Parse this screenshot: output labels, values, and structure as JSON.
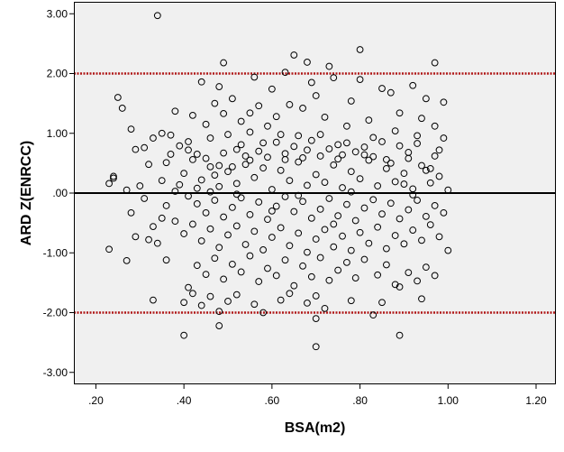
{
  "chart_data": {
    "type": "scatter",
    "title": "",
    "xlabel": "BSA(m2)",
    "ylabel": "ARD Z(ENRCC)",
    "xlim": [
      0.15,
      1.245
    ],
    "ylim": [
      -3.2,
      3.2
    ],
    "xticks": [
      0.2,
      0.4,
      0.6,
      0.8,
      1.0,
      1.2
    ],
    "xtick_labels": [
      ".20",
      ".40",
      ".60",
      ".80",
      "1.00",
      "1.20"
    ],
    "yticks": [
      3,
      2,
      1,
      0,
      -1,
      -2,
      -3
    ],
    "ytick_labels": [
      "3.00",
      "2.00",
      "1.00",
      ".00",
      "-1.00",
      "-2.00",
      "-3.00"
    ],
    "grid": false,
    "legend": "none",
    "plot_background": "#f0f0f0",
    "marker": "open-circle",
    "reference_lines": [
      {
        "y": 0,
        "style": "solid",
        "color": "#000000"
      },
      {
        "y": 2,
        "style": "dotted",
        "color": "#b01818"
      },
      {
        "y": -2,
        "style": "dotted",
        "color": "#b01818"
      }
    ],
    "points": [
      [
        0.34,
        2.97
      ],
      [
        0.49,
        2.18
      ],
      [
        0.63,
        2.02
      ],
      [
        0.65,
        2.31
      ],
      [
        0.68,
        2.19
      ],
      [
        0.73,
        2.12
      ],
      [
        0.8,
        2.4
      ],
      [
        0.97,
        2.18
      ],
      [
        0.25,
        1.6
      ],
      [
        0.26,
        1.42
      ],
      [
        0.28,
        1.07
      ],
      [
        0.29,
        0.73
      ],
      [
        0.31,
        0.76
      ],
      [
        0.33,
        0.92
      ],
      [
        0.35,
        1.0
      ],
      [
        0.36,
        0.51
      ],
      [
        0.37,
        0.97
      ],
      [
        0.38,
        1.37
      ],
      [
        0.39,
        0.79
      ],
      [
        0.41,
        0.86
      ],
      [
        0.42,
        1.3
      ],
      [
        0.43,
        0.65
      ],
      [
        0.45,
        1.15
      ],
      [
        0.46,
        0.92
      ],
      [
        0.47,
        1.5
      ],
      [
        0.48,
        1.78
      ],
      [
        0.49,
        1.33
      ],
      [
        0.5,
        0.98
      ],
      [
        0.51,
        1.58
      ],
      [
        0.52,
        0.73
      ],
      [
        0.53,
        1.2
      ],
      [
        0.54,
        0.62
      ],
      [
        0.55,
        1.02
      ],
      [
        0.57,
        1.46
      ],
      [
        0.58,
        0.84
      ],
      [
        0.59,
        1.12
      ],
      [
        0.6,
        1.74
      ],
      [
        0.61,
        1.28
      ],
      [
        0.63,
        0.56
      ],
      [
        0.64,
        1.48
      ],
      [
        0.66,
        0.96
      ],
      [
        0.67,
        1.42
      ],
      [
        0.68,
        0.72
      ],
      [
        0.7,
        1.63
      ],
      [
        0.71,
        0.98
      ],
      [
        0.72,
        1.27
      ],
      [
        0.74,
        1.93
      ],
      [
        0.75,
        0.81
      ],
      [
        0.77,
        1.12
      ],
      [
        0.78,
        1.54
      ],
      [
        0.8,
        1.9
      ],
      [
        0.81,
        0.64
      ],
      [
        0.82,
        1.22
      ],
      [
        0.83,
        0.93
      ],
      [
        0.85,
        1.75
      ],
      [
        0.86,
        0.56
      ],
      [
        0.88,
        1.04
      ],
      [
        0.89,
        1.34
      ],
      [
        0.91,
        0.68
      ],
      [
        0.92,
        1.8
      ],
      [
        0.93,
        0.96
      ],
      [
        0.95,
        1.58
      ],
      [
        0.96,
        0.41
      ],
      [
        0.97,
        1.12
      ],
      [
        0.98,
        0.72
      ],
      [
        0.99,
        1.52
      ],
      [
        0.99,
        0.92
      ],
      [
        0.44,
        1.86
      ],
      [
        0.56,
        1.94
      ],
      [
        0.69,
        1.85
      ],
      [
        0.87,
        1.68
      ],
      [
        0.94,
        1.25
      ],
      [
        0.4,
        0.33
      ],
      [
        0.42,
        0.56
      ],
      [
        0.44,
        0.22
      ],
      [
        0.46,
        0.44
      ],
      [
        0.48,
        0.11
      ],
      [
        0.5,
        0.36
      ],
      [
        0.52,
        0.16
      ],
      [
        0.54,
        0.48
      ],
      [
        0.56,
        0.26
      ],
      [
        0.58,
        0.42
      ],
      [
        0.6,
        0.06
      ],
      [
        0.62,
        0.38
      ],
      [
        0.64,
        0.21
      ],
      [
        0.66,
        0.52
      ],
      [
        0.68,
        0.13
      ],
      [
        0.7,
        0.31
      ],
      [
        0.72,
        0.18
      ],
      [
        0.74,
        0.47
      ],
      [
        0.76,
        0.09
      ],
      [
        0.78,
        0.36
      ],
      [
        0.8,
        0.24
      ],
      [
        0.82,
        0.55
      ],
      [
        0.84,
        0.12
      ],
      [
        0.86,
        0.41
      ],
      [
        0.88,
        0.19
      ],
      [
        0.9,
        0.33
      ],
      [
        0.92,
        0.07
      ],
      [
        0.94,
        0.46
      ],
      [
        0.96,
        0.17
      ],
      [
        0.98,
        0.28
      ],
      [
        1.0,
        0.05
      ],
      [
        0.23,
        0.16
      ],
      [
        0.24,
        0.25
      ],
      [
        0.27,
        0.05
      ],
      [
        0.3,
        0.12
      ],
      [
        0.32,
        0.48
      ],
      [
        0.35,
        0.21
      ],
      [
        0.37,
        0.65
      ],
      [
        0.39,
        0.14
      ],
      [
        0.41,
        0.72
      ],
      [
        0.43,
        0.08
      ],
      [
        0.45,
        0.58
      ],
      [
        0.47,
        0.3
      ],
      [
        0.49,
        0.67
      ],
      [
        0.51,
        0.44
      ],
      [
        0.53,
        0.81
      ],
      [
        0.55,
        0.55
      ],
      [
        0.57,
        0.7
      ],
      [
        0.59,
        0.6
      ],
      [
        0.61,
        0.85
      ],
      [
        0.63,
        0.66
      ],
      [
        0.65,
        0.78
      ],
      [
        0.67,
        0.59
      ],
      [
        0.69,
        0.88
      ],
      [
        0.71,
        0.62
      ],
      [
        0.73,
        0.74
      ],
      [
        0.75,
        0.57
      ],
      [
        0.77,
        0.84
      ],
      [
        0.79,
        0.69
      ],
      [
        0.81,
        0.77
      ],
      [
        0.83,
        0.61
      ],
      [
        0.85,
        0.86
      ],
      [
        0.87,
        0.5
      ],
      [
        0.89,
        0.79
      ],
      [
        0.91,
        0.58
      ],
      [
        0.93,
        0.83
      ],
      [
        0.95,
        0.38
      ],
      [
        0.97,
        0.62
      ],
      [
        0.41,
        -0.05
      ],
      [
        0.43,
        -0.18
      ],
      [
        0.45,
        -0.33
      ],
      [
        0.47,
        -0.12
      ],
      [
        0.49,
        -0.4
      ],
      [
        0.51,
        -0.24
      ],
      [
        0.53,
        -0.08
      ],
      [
        0.55,
        -0.36
      ],
      [
        0.57,
        -0.15
      ],
      [
        0.59,
        -0.44
      ],
      [
        0.61,
        -0.22
      ],
      [
        0.63,
        -0.06
      ],
      [
        0.65,
        -0.31
      ],
      [
        0.67,
        -0.14
      ],
      [
        0.69,
        -0.42
      ],
      [
        0.71,
        -0.27
      ],
      [
        0.73,
        -0.09
      ],
      [
        0.75,
        -0.38
      ],
      [
        0.77,
        -0.19
      ],
      [
        0.79,
        -0.46
      ],
      [
        0.81,
        -0.25
      ],
      [
        0.83,
        -0.11
      ],
      [
        0.85,
        -0.35
      ],
      [
        0.87,
        -0.17
      ],
      [
        0.89,
        -0.43
      ],
      [
        0.91,
        -0.28
      ],
      [
        0.93,
        -0.12
      ],
      [
        0.95,
        -0.39
      ],
      [
        0.97,
        -0.21
      ],
      [
        0.99,
        -0.33
      ],
      [
        0.28,
        -0.33
      ],
      [
        0.31,
        -0.09
      ],
      [
        0.33,
        -0.56
      ],
      [
        0.36,
        -0.21
      ],
      [
        0.38,
        -0.47
      ],
      [
        0.4,
        -0.68
      ],
      [
        0.42,
        -0.52
      ],
      [
        0.44,
        -0.8
      ],
      [
        0.46,
        -0.6
      ],
      [
        0.48,
        -0.91
      ],
      [
        0.5,
        -0.7
      ],
      [
        0.52,
        -0.55
      ],
      [
        0.54,
        -0.86
      ],
      [
        0.56,
        -0.64
      ],
      [
        0.58,
        -0.95
      ],
      [
        0.6,
        -0.74
      ],
      [
        0.62,
        -0.58
      ],
      [
        0.64,
        -0.88
      ],
      [
        0.66,
        -0.67
      ],
      [
        0.68,
        -0.99
      ],
      [
        0.7,
        -0.77
      ],
      [
        0.72,
        -0.61
      ],
      [
        0.74,
        -0.9
      ],
      [
        0.76,
        -0.72
      ],
      [
        0.78,
        -0.96
      ],
      [
        0.8,
        -0.66
      ],
      [
        0.82,
        -0.84
      ],
      [
        0.84,
        -0.57
      ],
      [
        0.86,
        -0.93
      ],
      [
        0.88,
        -0.71
      ],
      [
        0.9,
        -0.85
      ],
      [
        0.92,
        -0.62
      ],
      [
        0.94,
        -0.79
      ],
      [
        0.96,
        -0.53
      ],
      [
        0.98,
        -0.73
      ],
      [
        1.0,
        -0.96
      ],
      [
        0.23,
        -0.94
      ],
      [
        0.27,
        -1.13
      ],
      [
        0.29,
        -0.73
      ],
      [
        0.32,
        -0.78
      ],
      [
        0.34,
        -0.84
      ],
      [
        0.36,
        -1.12
      ],
      [
        0.41,
        -1.58
      ],
      [
        0.43,
        -1.21
      ],
      [
        0.45,
        -1.36
      ],
      [
        0.47,
        -1.09
      ],
      [
        0.49,
        -1.44
      ],
      [
        0.51,
        -1.19
      ],
      [
        0.53,
        -1.32
      ],
      [
        0.55,
        -1.05
      ],
      [
        0.57,
        -1.48
      ],
      [
        0.59,
        -1.26
      ],
      [
        0.61,
        -1.38
      ],
      [
        0.63,
        -1.12
      ],
      [
        0.65,
        -1.55
      ],
      [
        0.67,
        -1.22
      ],
      [
        0.69,
        -1.4
      ],
      [
        0.71,
        -1.08
      ],
      [
        0.73,
        -1.46
      ],
      [
        0.75,
        -1.29
      ],
      [
        0.77,
        -1.16
      ],
      [
        0.79,
        -1.42
      ],
      [
        0.81,
        -1.11
      ],
      [
        0.84,
        -1.37
      ],
      [
        0.86,
        -1.2
      ],
      [
        0.88,
        -1.53
      ],
      [
        0.91,
        -1.33
      ],
      [
        0.93,
        -1.47
      ],
      [
        0.95,
        -1.24
      ],
      [
        0.97,
        -1.38
      ],
      [
        0.33,
        -1.79
      ],
      [
        0.4,
        -1.83
      ],
      [
        0.42,
        -1.68
      ],
      [
        0.44,
        -1.88
      ],
      [
        0.46,
        -1.73
      ],
      [
        0.48,
        -1.98
      ],
      [
        0.5,
        -1.81
      ],
      [
        0.52,
        -1.7
      ],
      [
        0.56,
        -1.86
      ],
      [
        0.58,
        -2.0
      ],
      [
        0.62,
        -1.79
      ],
      [
        0.64,
        -1.68
      ],
      [
        0.68,
        -1.84
      ],
      [
        0.7,
        -1.72
      ],
      [
        0.72,
        -1.93
      ],
      [
        0.78,
        -1.8
      ],
      [
        0.83,
        -2.04
      ],
      [
        0.85,
        -1.83
      ],
      [
        0.89,
        -1.57
      ],
      [
        0.94,
        -1.77
      ],
      [
        0.4,
        -2.38
      ],
      [
        0.48,
        -2.22
      ],
      [
        0.7,
        -2.1
      ],
      [
        0.7,
        -2.57
      ],
      [
        0.89,
        -2.38
      ],
      [
        0.24,
        0.28
      ],
      [
        0.38,
        0.03
      ],
      [
        0.52,
        -0.02
      ],
      [
        0.66,
        -0.04
      ],
      [
        0.78,
        0.02
      ],
      [
        0.92,
        -0.03
      ],
      [
        0.62,
        0.98
      ],
      [
        0.48,
        0.46
      ],
      [
        0.74,
        -0.52
      ],
      [
        0.46,
        0.02
      ],
      [
        0.6,
        -0.3
      ],
      [
        0.76,
        0.64
      ],
      [
        0.9,
        0.15
      ],
      [
        0.35,
        -0.42
      ],
      [
        0.55,
        1.34
      ]
    ]
  }
}
